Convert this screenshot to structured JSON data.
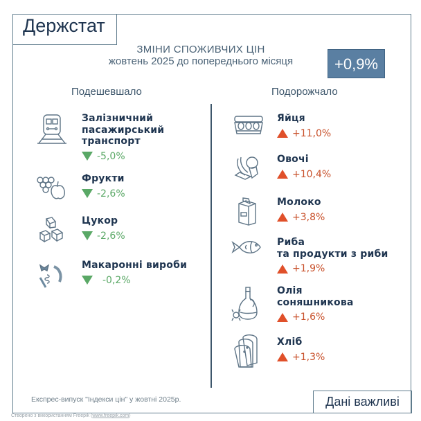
{
  "logo": "Держстат",
  "header": {
    "title": "ЗМІНИ СПОЖИВЧИХ ЦІН",
    "subtitle": "жовтень 2025 до попереднього місяця",
    "overall_change": "+0,9%"
  },
  "colors": {
    "accent": "#5a7fa2",
    "decrease": "#5aa866",
    "increase": "#e0502a",
    "text": "#1f3550"
  },
  "cheaper": {
    "heading": "Подешевшало",
    "items": [
      {
        "lines": [
          "Залізничний",
          "пасажирський",
          "транспорт"
        ],
        "change": "-5,0%",
        "icon": "train-icon"
      },
      {
        "lines": [
          "Фрукти"
        ],
        "change": "-2,6%",
        "icon": "fruit-icon"
      },
      {
        "lines": [
          "Цукор"
        ],
        "change": "-2,6%",
        "icon": "sugar-cubes-icon"
      },
      {
        "lines": [
          "Макаронні вироби"
        ],
        "change": "-0,2%",
        "icon": "pasta-icon"
      }
    ]
  },
  "pricier": {
    "heading": "Подорожчало",
    "items": [
      {
        "lines": [
          "Яйця"
        ],
        "change": "+11,0%",
        "icon": "eggs-icon"
      },
      {
        "lines": [
          "Овочі"
        ],
        "change": "+10,4%",
        "icon": "vegetables-icon"
      },
      {
        "lines": [
          "Молоко"
        ],
        "change": "+3,8%",
        "icon": "milk-carton-icon"
      },
      {
        "lines": [
          "Риба",
          "та продукти з риби"
        ],
        "change": "+1,9%",
        "icon": "fish-icon"
      },
      {
        "lines": [
          "Олія",
          "соняшникова"
        ],
        "change": "+1,6%",
        "icon": "oil-bottle-icon"
      },
      {
        "lines": [
          "Хліб"
        ],
        "change": "+1,3%",
        "icon": "bread-icon"
      }
    ]
  },
  "footer": {
    "source": "Експрес-випуск \"Індекси цін\" у жовтні 2025р.",
    "tagline": "Дані важливі",
    "credit_prefix": "Створено з використанням Freepik (",
    "credit_link": "www.freepik.com",
    "credit_suffix": ")"
  }
}
